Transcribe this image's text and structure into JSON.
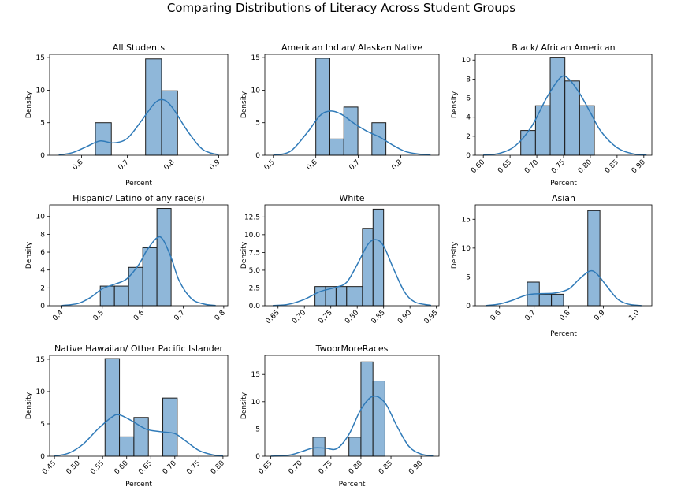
{
  "figure_title": "Comparing Distributions of Literacy Across Student Groups",
  "colors": {
    "bar_fill": "#8fb7d9",
    "bar_stroke": "#1a1a1a",
    "kde": "#2f7ab8",
    "axis": "#000000"
  },
  "chart_data": [
    {
      "type": "bar",
      "title": "All Students",
      "xlabel": "Percent",
      "ylabel": "Density",
      "xlim": [
        0.53,
        0.92
      ],
      "ylim": [
        0,
        15.5
      ],
      "xticks": [
        "0.6",
        "0.7",
        "0.8",
        "0.9"
      ],
      "yticks": [
        "0",
        "5",
        "10",
        "15"
      ],
      "bins": [
        [
          0.63,
          0.665,
          5.0
        ],
        [
          0.665,
          0.7,
          0.0
        ],
        [
          0.7,
          0.74,
          0.0
        ],
        [
          0.74,
          0.775,
          14.8
        ],
        [
          0.775,
          0.81,
          9.9
        ]
      ],
      "kde": [
        [
          0.55,
          0.05
        ],
        [
          0.58,
          0.4
        ],
        [
          0.61,
          1.3
        ],
        [
          0.64,
          2.2
        ],
        [
          0.67,
          1.9
        ],
        [
          0.7,
          2.6
        ],
        [
          0.73,
          5.2
        ],
        [
          0.76,
          8.0
        ],
        [
          0.78,
          8.5
        ],
        [
          0.8,
          7.2
        ],
        [
          0.83,
          3.9
        ],
        [
          0.86,
          1.2
        ],
        [
          0.88,
          0.4
        ],
        [
          0.9,
          0.1
        ]
      ]
    },
    {
      "type": "bar",
      "title": "American Indian/ Alaskan Native",
      "xlabel": "",
      "ylabel": "Density",
      "xlim": [
        0.48,
        0.89
      ],
      "ylim": [
        0,
        15.5
      ],
      "xticks": [
        "0.5",
        "0.6",
        "0.7",
        "0.8"
      ],
      "yticks": [
        "0",
        "5",
        "10",
        "15"
      ],
      "bins": [
        [
          0.6,
          0.633,
          14.9
        ],
        [
          0.633,
          0.666,
          2.5
        ],
        [
          0.666,
          0.699,
          7.4
        ],
        [
          0.699,
          0.732,
          0.0
        ],
        [
          0.732,
          0.765,
          5.0
        ]
      ],
      "kde": [
        [
          0.5,
          0.05
        ],
        [
          0.54,
          0.6
        ],
        [
          0.58,
          3.5
        ],
        [
          0.61,
          6.1
        ],
        [
          0.635,
          6.8
        ],
        [
          0.66,
          6.3
        ],
        [
          0.69,
          4.9
        ],
        [
          0.72,
          3.7
        ],
        [
          0.75,
          2.8
        ],
        [
          0.78,
          1.6
        ],
        [
          0.81,
          0.6
        ],
        [
          0.84,
          0.2
        ],
        [
          0.87,
          0.05
        ]
      ]
    },
    {
      "type": "bar",
      "title": "Black/ African American",
      "xlabel": "Percent",
      "ylabel": "Density",
      "xlim": [
        0.585,
        0.915
      ],
      "ylim": [
        0,
        10.6
      ],
      "xticks": [
        "0.60",
        "0.65",
        "0.70",
        "0.75",
        "0.80",
        "0.85",
        "0.90"
      ],
      "yticks": [
        "0",
        "2",
        "4",
        "6",
        "8",
        "10"
      ],
      "bins": [
        [
          0.67,
          0.6975,
          2.6
        ],
        [
          0.6975,
          0.725,
          5.2
        ],
        [
          0.725,
          0.7525,
          10.3
        ],
        [
          0.7525,
          0.78,
          7.8
        ],
        [
          0.78,
          0.8075,
          5.2
        ]
      ],
      "kde": [
        [
          0.6,
          0.02
        ],
        [
          0.63,
          0.2
        ],
        [
          0.66,
          1.0
        ],
        [
          0.69,
          3.0
        ],
        [
          0.72,
          6.2
        ],
        [
          0.745,
          8.2
        ],
        [
          0.76,
          8.0
        ],
        [
          0.78,
          6.5
        ],
        [
          0.8,
          4.5
        ],
        [
          0.82,
          2.5
        ],
        [
          0.85,
          0.8
        ],
        [
          0.88,
          0.15
        ],
        [
          0.905,
          0.02
        ]
      ]
    },
    {
      "type": "bar",
      "title": "Hispanic/ Latino of any race(s)",
      "xlabel": "",
      "ylabel": "Density",
      "xlim": [
        0.37,
        0.81
      ],
      "ylim": [
        0,
        11.3
      ],
      "xticks": [
        "0.4",
        "0.5",
        "0.6",
        "0.7",
        "0.8"
      ],
      "yticks": [
        "0",
        "2",
        "4",
        "6",
        "8",
        "10"
      ],
      "bins": [
        [
          0.495,
          0.53,
          2.2
        ],
        [
          0.53,
          0.565,
          2.2
        ],
        [
          0.565,
          0.6,
          4.3
        ],
        [
          0.6,
          0.635,
          6.5
        ],
        [
          0.635,
          0.67,
          10.9
        ]
      ],
      "kde": [
        [
          0.4,
          0.02
        ],
        [
          0.44,
          0.25
        ],
        [
          0.47,
          0.9
        ],
        [
          0.5,
          1.9
        ],
        [
          0.53,
          2.4
        ],
        [
          0.56,
          3.0
        ],
        [
          0.59,
          4.6
        ],
        [
          0.61,
          6.2
        ],
        [
          0.635,
          7.6
        ],
        [
          0.65,
          7.4
        ],
        [
          0.67,
          5.4
        ],
        [
          0.69,
          2.8
        ],
        [
          0.72,
          0.8
        ],
        [
          0.75,
          0.2
        ],
        [
          0.78,
          0.02
        ]
      ]
    },
    {
      "type": "bar",
      "title": "White",
      "xlabel": "",
      "ylabel": "Density",
      "xlim": [
        0.625,
        0.955
      ],
      "ylim": [
        0,
        14.2
      ],
      "xticks": [
        "0.65",
        "0.70",
        "0.75",
        "0.80",
        "0.85",
        "0.90",
        "0.95"
      ],
      "yticks": [
        "0.0",
        "2.5",
        "5.0",
        "7.5",
        "10.0",
        "12.5"
      ],
      "bins": [
        [
          0.72,
          0.74,
          2.7
        ],
        [
          0.74,
          0.76,
          2.7
        ],
        [
          0.76,
          0.78,
          2.7
        ],
        [
          0.78,
          0.81,
          2.7
        ],
        [
          0.81,
          0.83,
          10.9
        ],
        [
          0.83,
          0.85,
          13.6
        ]
      ],
      "kde": [
        [
          0.64,
          0.02
        ],
        [
          0.67,
          0.2
        ],
        [
          0.7,
          0.9
        ],
        [
          0.73,
          2.0
        ],
        [
          0.76,
          2.6
        ],
        [
          0.78,
          3.3
        ],
        [
          0.8,
          5.8
        ],
        [
          0.82,
          8.6
        ],
        [
          0.835,
          9.3
        ],
        [
          0.85,
          8.4
        ],
        [
          0.87,
          5.0
        ],
        [
          0.89,
          1.9
        ],
        [
          0.91,
          0.5
        ],
        [
          0.94,
          0.05
        ]
      ]
    },
    {
      "type": "bar",
      "title": "Asian",
      "xlabel": "Percent",
      "ylabel": "Density",
      "xlim": [
        0.53,
        1.04
      ],
      "ylim": [
        0,
        17.5
      ],
      "xticks": [
        "0.6",
        "0.7",
        "0.8",
        "0.9",
        "1.0"
      ],
      "yticks": [
        "0",
        "5",
        "10",
        "15"
      ],
      "bins": [
        [
          0.68,
          0.715,
          4.1
        ],
        [
          0.715,
          0.75,
          2.0
        ],
        [
          0.75,
          0.785,
          2.0
        ],
        [
          0.785,
          0.82,
          0.0
        ],
        [
          0.82,
          0.855,
          0.0
        ],
        [
          0.855,
          0.89,
          16.5
        ]
      ],
      "kde": [
        [
          0.56,
          0.02
        ],
        [
          0.6,
          0.3
        ],
        [
          0.64,
          1.0
        ],
        [
          0.68,
          1.9
        ],
        [
          0.72,
          2.1
        ],
        [
          0.76,
          2.2
        ],
        [
          0.8,
          2.9
        ],
        [
          0.83,
          4.6
        ],
        [
          0.86,
          6.0
        ],
        [
          0.88,
          5.6
        ],
        [
          0.91,
          3.4
        ],
        [
          0.94,
          1.2
        ],
        [
          0.97,
          0.3
        ],
        [
          1.01,
          0.02
        ]
      ]
    },
    {
      "type": "bar",
      "title": "Native Hawaiian/ Other Pacific Islander",
      "xlabel": "Percent",
      "ylabel": "Density",
      "xlim": [
        0.44,
        0.81
      ],
      "ylim": [
        0,
        15.6
      ],
      "xticks": [
        "0.45",
        "0.50",
        "0.55",
        "0.60",
        "0.65",
        "0.70",
        "0.75",
        "0.80"
      ],
      "yticks": [
        "0",
        "5",
        "10",
        "15"
      ],
      "bins": [
        [
          0.555,
          0.585,
          15.1
        ],
        [
          0.585,
          0.615,
          3.0
        ],
        [
          0.615,
          0.645,
          6.0
        ],
        [
          0.645,
          0.675,
          0.0
        ],
        [
          0.675,
          0.705,
          9.0
        ]
      ],
      "kde": [
        [
          0.45,
          0.05
        ],
        [
          0.48,
          0.5
        ],
        [
          0.51,
          1.9
        ],
        [
          0.54,
          4.2
        ],
        [
          0.57,
          6.1
        ],
        [
          0.585,
          6.4
        ],
        [
          0.61,
          5.5
        ],
        [
          0.64,
          4.2
        ],
        [
          0.67,
          3.8
        ],
        [
          0.7,
          3.5
        ],
        [
          0.72,
          2.5
        ],
        [
          0.75,
          0.9
        ],
        [
          0.78,
          0.2
        ],
        [
          0.8,
          0.03
        ]
      ]
    },
    {
      "type": "bar",
      "title": "TwoorMoreRaces",
      "xlabel": "Percent",
      "ylabel": "Density",
      "xlim": [
        0.64,
        0.93
      ],
      "ylim": [
        0,
        18.5
      ],
      "xticks": [
        "0.65",
        "0.70",
        "0.75",
        "0.80",
        "0.85",
        "0.90"
      ],
      "yticks": [
        "0",
        "5",
        "10",
        "15"
      ],
      "bins": [
        [
          0.72,
          0.74,
          3.5
        ],
        [
          0.74,
          0.76,
          0.0
        ],
        [
          0.76,
          0.78,
          0.0
        ],
        [
          0.78,
          0.8,
          3.5
        ],
        [
          0.8,
          0.82,
          17.3
        ],
        [
          0.82,
          0.84,
          13.8
        ]
      ],
      "kde": [
        [
          0.65,
          0.02
        ],
        [
          0.68,
          0.2
        ],
        [
          0.7,
          0.8
        ],
        [
          0.72,
          1.5
        ],
        [
          0.74,
          1.5
        ],
        [
          0.76,
          1.4
        ],
        [
          0.78,
          4.0
        ],
        [
          0.8,
          8.6
        ],
        [
          0.82,
          11.0
        ],
        [
          0.84,
          9.8
        ],
        [
          0.86,
          5.5
        ],
        [
          0.88,
          1.8
        ],
        [
          0.9,
          0.4
        ],
        [
          0.92,
          0.03
        ]
      ]
    }
  ]
}
